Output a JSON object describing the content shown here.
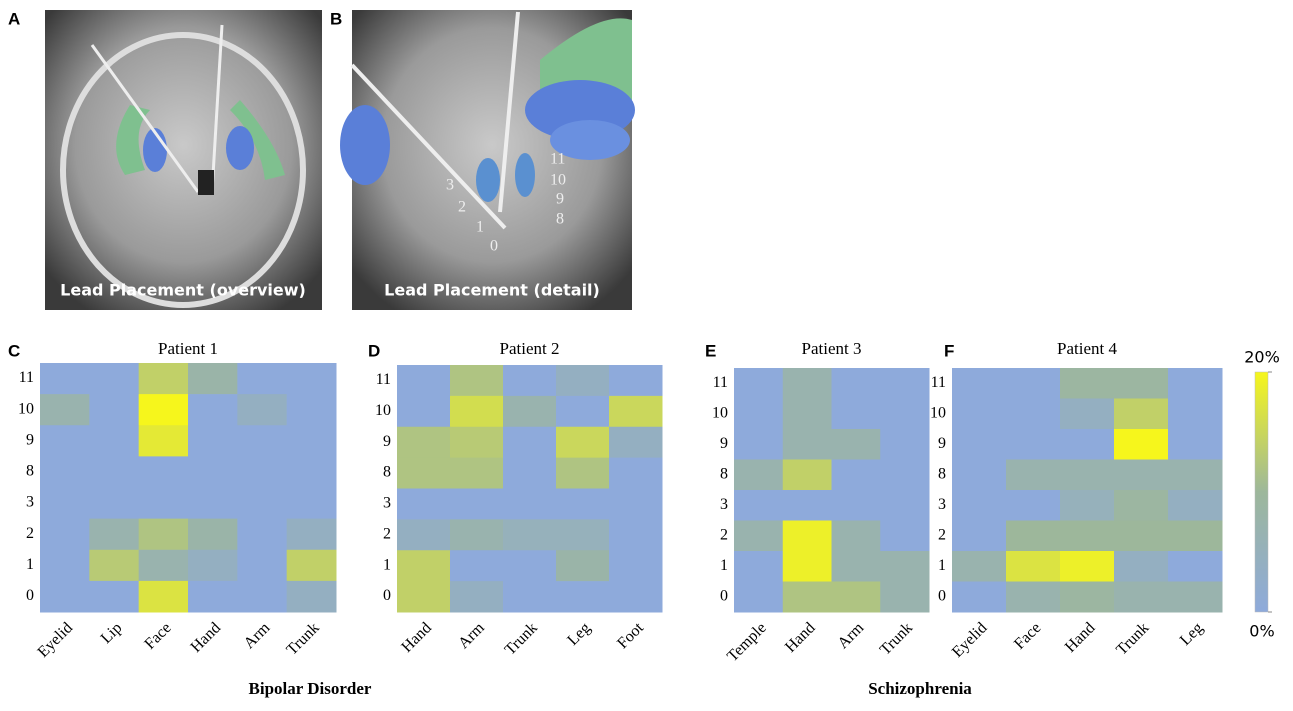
{
  "figure": {
    "panel_letters": [
      "A",
      "B",
      "C",
      "D",
      "E",
      "F"
    ],
    "image_captions": [
      "Lead Placement (overview)",
      "Lead Placement (detail)"
    ],
    "contacts_left": [
      "3",
      "2",
      "1",
      "0"
    ],
    "contacts_right": [
      "11",
      "10",
      "9",
      "8"
    ],
    "groups": [
      "Bipolar Disorder",
      "Schizophrenia"
    ],
    "colorbar": {
      "lim": [
        0,
        20
      ],
      "ticks": [
        {
          "value": 20,
          "label": "20%"
        },
        {
          "value": 0,
          "label": "0%"
        }
      ],
      "colors": [
        "#8eaadb",
        "#9db79b",
        "#f6f61c"
      ]
    }
  },
  "chart_data": [
    {
      "type": "heatmap",
      "title": "Patient 1",
      "categories": [
        "Eyelid",
        "Lip",
        "Face",
        "Hand",
        "Arm",
        "Trunk"
      ],
      "rows": [
        "11",
        "10",
        "9",
        "8",
        "3",
        "2",
        "1",
        "0"
      ],
      "values": [
        [
          0,
          0,
          14,
          8,
          0,
          0
        ],
        [
          7,
          0,
          20,
          0,
          4,
          0
        ],
        [
          0,
          0,
          18,
          0,
          0,
          0
        ],
        [
          0,
          0,
          0,
          0,
          0,
          0
        ],
        [
          0,
          0,
          0,
          0,
          0,
          0
        ],
        [
          0,
          7,
          12,
          8,
          0,
          4
        ],
        [
          0,
          13,
          7,
          4,
          0,
          14
        ],
        [
          0,
          0,
          17,
          0,
          0,
          4
        ]
      ]
    },
    {
      "type": "heatmap",
      "title": "Patient 2",
      "categories": [
        "Hand",
        "Arm",
        "Trunk",
        "Leg",
        "Foot"
      ],
      "rows": [
        "11",
        "10",
        "9",
        "8",
        "3",
        "2",
        "1",
        "0"
      ],
      "values": [
        [
          0,
          12,
          0,
          4,
          0
        ],
        [
          0,
          16,
          7,
          0,
          15
        ],
        [
          12,
          13,
          0,
          15,
          4
        ],
        [
          12,
          12,
          0,
          12,
          0
        ],
        [
          0,
          0,
          0,
          0,
          0
        ],
        [
          4,
          7,
          5,
          5,
          0
        ],
        [
          14,
          0,
          0,
          8,
          0
        ],
        [
          14,
          4,
          0,
          0,
          0
        ]
      ]
    },
    {
      "type": "heatmap",
      "title": "Patient 3",
      "categories": [
        "Temple",
        "Hand",
        "Arm",
        "Trunk"
      ],
      "rows": [
        "11",
        "10",
        "9",
        "8",
        "3",
        "2",
        "1",
        "0"
      ],
      "values": [
        [
          0,
          7,
          0,
          0
        ],
        [
          0,
          7,
          0,
          0
        ],
        [
          0,
          7,
          7,
          0
        ],
        [
          7,
          14,
          0,
          0
        ],
        [
          0,
          0,
          0,
          0
        ],
        [
          7,
          19,
          7,
          0
        ],
        [
          0,
          19,
          7,
          7
        ],
        [
          0,
          12,
          12,
          7
        ]
      ]
    },
    {
      "type": "heatmap",
      "title": "Patient 4",
      "categories": [
        "Eyelid",
        "Face",
        "Hand",
        "Trunk",
        "Leg"
      ],
      "rows": [
        "11",
        "10",
        "9",
        "8",
        "3",
        "2",
        "1",
        "0"
      ],
      "values": [
        [
          0,
          0,
          9,
          9,
          0
        ],
        [
          0,
          0,
          4,
          14,
          0
        ],
        [
          0,
          0,
          0,
          20,
          0
        ],
        [
          0,
          7,
          7,
          7,
          7
        ],
        [
          0,
          0,
          5,
          9,
          4
        ],
        [
          0,
          10,
          10,
          10,
          10
        ],
        [
          7,
          17,
          19,
          4,
          0
        ],
        [
          0,
          7,
          9,
          7,
          7
        ]
      ]
    }
  ]
}
